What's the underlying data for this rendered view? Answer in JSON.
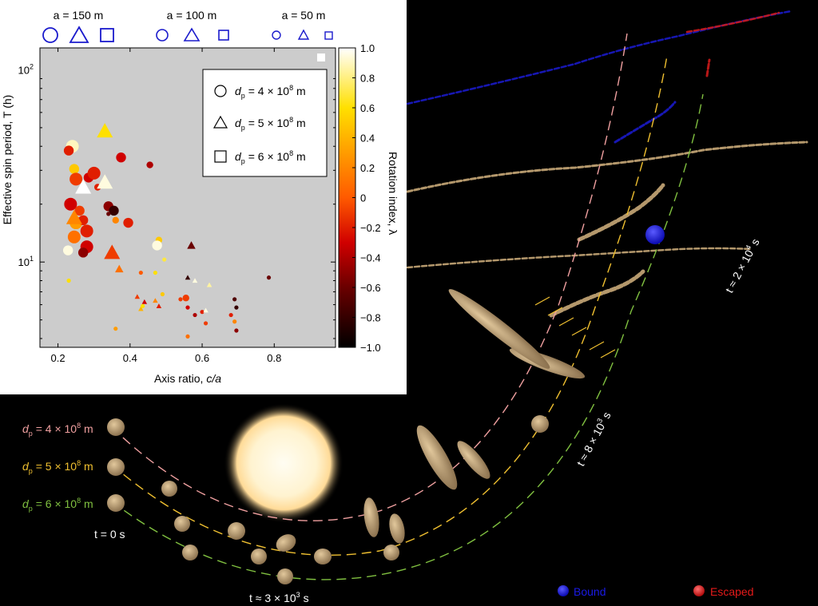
{
  "chart_data": {
    "type": "scatter",
    "xlabel_main": "Axis ratio, ",
    "xlabel_var": "c/a",
    "ylabel": "Effective spin period, T (h)",
    "ylog": true,
    "xlim": [
      0.15,
      0.97
    ],
    "ylim": [
      3.6,
      130
    ],
    "xticks": [
      "0.2",
      "0.4",
      "0.6",
      "0.8"
    ],
    "xtick_values": [
      0.2,
      0.4,
      0.6,
      0.8
    ],
    "ytick_labels": [
      {
        "value": 100,
        "base": "10",
        "exp": "2"
      },
      {
        "value": 10,
        "base": "10",
        "exp": "1"
      }
    ],
    "background": "#cccccc",
    "colorbar": {
      "label": "Rotation index, λ",
      "range": [
        -1,
        1
      ],
      "ticks": [
        "1.0",
        "0.8",
        "0.6",
        "0.4",
        "0.2",
        "0",
        "−0.2",
        "−0.4",
        "−0.6",
        "−0.8",
        "−1.0"
      ],
      "tick_values": [
        1.0,
        0.8,
        0.6,
        0.4,
        0.2,
        0,
        -0.2,
        -0.4,
        -0.6,
        -0.8,
        -1.0
      ]
    },
    "top_key": [
      {
        "label": "a = 150 m",
        "size": "large"
      },
      {
        "label": "a = 100 m",
        "size": "medium"
      },
      {
        "label": "a = 50 m",
        "size": "small"
      }
    ],
    "legend": [
      {
        "shape": "circle",
        "label": "dp = 4 × 10^8 m"
      },
      {
        "shape": "triangle",
        "label": "dp = 5 × 10^8 m"
      },
      {
        "shape": "square",
        "label": "dp = 6 × 10^8 m"
      }
    ],
    "points": [
      {
        "x": 0.24,
        "y": 40,
        "shape": "circle",
        "size": "L",
        "lambda": 0.9
      },
      {
        "x": 0.23,
        "y": 38,
        "shape": "circle",
        "size": "M",
        "lambda": -0.2
      },
      {
        "x": 0.245,
        "y": 30.5,
        "shape": "circle",
        "size": "M",
        "lambda": 0.5
      },
      {
        "x": 0.25,
        "y": 27,
        "shape": "circle",
        "size": "L",
        "lambda": -0.1
      },
      {
        "x": 0.285,
        "y": 27.5,
        "shape": "circle",
        "size": "M",
        "lambda": -0.3
      },
      {
        "x": 0.3,
        "y": 29,
        "shape": "circle",
        "size": "L",
        "lambda": -0.2
      },
      {
        "x": 0.235,
        "y": 20,
        "shape": "circle",
        "size": "L",
        "lambda": -0.3
      },
      {
        "x": 0.26,
        "y": 18.5,
        "shape": "circle",
        "size": "M",
        "lambda": -0.1
      },
      {
        "x": 0.25,
        "y": 16,
        "shape": "circle",
        "size": "L",
        "lambda": 0.3
      },
      {
        "x": 0.27,
        "y": 16.5,
        "shape": "circle",
        "size": "M",
        "lambda": -0.2
      },
      {
        "x": 0.28,
        "y": 14.5,
        "shape": "circle",
        "size": "L",
        "lambda": -0.2
      },
      {
        "x": 0.245,
        "y": 13.5,
        "shape": "circle",
        "size": "L",
        "lambda": 0.1
      },
      {
        "x": 0.28,
        "y": 12,
        "shape": "circle",
        "size": "L",
        "lambda": -0.3
      },
      {
        "x": 0.27,
        "y": 11.2,
        "shape": "circle",
        "size": "M",
        "lambda": -0.5
      },
      {
        "x": 0.228,
        "y": 11.5,
        "shape": "circle",
        "size": "M",
        "lambda": 0.95
      },
      {
        "x": 0.31,
        "y": 24.5,
        "shape": "circle",
        "size": "S",
        "lambda": -0.2
      },
      {
        "x": 0.34,
        "y": 19.5,
        "shape": "circle",
        "size": "M",
        "lambda": -0.5
      },
      {
        "x": 0.355,
        "y": 18.5,
        "shape": "circle",
        "size": "M",
        "lambda": -0.8
      },
      {
        "x": 0.36,
        "y": 16.5,
        "shape": "circle",
        "size": "S",
        "lambda": 0.2
      },
      {
        "x": 0.375,
        "y": 35,
        "shape": "circle",
        "size": "M",
        "lambda": -0.3
      },
      {
        "x": 0.395,
        "y": 16,
        "shape": "circle",
        "size": "M",
        "lambda": -0.2
      },
      {
        "x": 0.23,
        "y": 8,
        "shape": "circle",
        "size": "XS",
        "lambda": 0.6
      },
      {
        "x": 0.455,
        "y": 32,
        "shape": "circle",
        "size": "S",
        "lambda": -0.4
      },
      {
        "x": 0.48,
        "y": 13,
        "shape": "circle",
        "size": "S",
        "lambda": 0.5
      },
      {
        "x": 0.475,
        "y": 12.2,
        "shape": "circle",
        "size": "M",
        "lambda": 0.95
      },
      {
        "x": 0.555,
        "y": 6.5,
        "shape": "circle",
        "size": "S",
        "lambda": -0.1
      },
      {
        "x": 0.54,
        "y": 6.4,
        "shape": "circle",
        "size": "XS",
        "lambda": -0.1
      },
      {
        "x": 0.6,
        "y": 5.5,
        "shape": "circle",
        "size": "XS",
        "lambda": -0.2
      },
      {
        "x": 0.56,
        "y": 5.8,
        "shape": "circle",
        "size": "XS",
        "lambda": -0.3
      },
      {
        "x": 0.58,
        "y": 5.3,
        "shape": "circle",
        "size": "XS",
        "lambda": -0.4
      },
      {
        "x": 0.61,
        "y": 4.8,
        "shape": "circle",
        "size": "XS",
        "lambda": -0.1
      },
      {
        "x": 0.56,
        "y": 4.1,
        "shape": "circle",
        "size": "XS",
        "lambda": 0.1
      },
      {
        "x": 0.49,
        "y": 6.8,
        "shape": "circle",
        "size": "XS",
        "lambda": 0.5
      },
      {
        "x": 0.36,
        "y": 4.5,
        "shape": "circle",
        "size": "XS",
        "lambda": 0.3
      },
      {
        "x": 0.69,
        "y": 6.4,
        "shape": "circle",
        "size": "XS",
        "lambda": -0.7
      },
      {
        "x": 0.695,
        "y": 5.8,
        "shape": "circle",
        "size": "XS",
        "lambda": -0.8
      },
      {
        "x": 0.69,
        "y": 4.9,
        "shape": "circle",
        "size": "XS",
        "lambda": 0.2
      },
      {
        "x": 0.68,
        "y": 5.3,
        "shape": "circle",
        "size": "XS",
        "lambda": -0.2
      },
      {
        "x": 0.695,
        "y": 4.4,
        "shape": "circle",
        "size": "XS",
        "lambda": -0.5
      },
      {
        "x": 0.785,
        "y": 8.3,
        "shape": "circle",
        "size": "XS",
        "lambda": -0.6
      },
      {
        "x": 0.33,
        "y": 48,
        "shape": "triangle",
        "size": "L",
        "lambda": 0.6
      },
      {
        "x": 0.27,
        "y": 24.5,
        "shape": "triangle",
        "size": "L",
        "lambda": 1.0
      },
      {
        "x": 0.33,
        "y": 26,
        "shape": "triangle",
        "size": "L",
        "lambda": 0.95
      },
      {
        "x": 0.245,
        "y": 17,
        "shape": "triangle",
        "size": "L",
        "lambda": 0.2
      },
      {
        "x": 0.35,
        "y": 11.2,
        "shape": "triangle",
        "size": "L",
        "lambda": -0.1
      },
      {
        "x": 0.37,
        "y": 9.2,
        "shape": "triangle",
        "size": "S",
        "lambda": 0.1
      },
      {
        "x": 0.57,
        "y": 12.2,
        "shape": "triangle",
        "size": "S",
        "lambda": -0.6
      },
      {
        "x": 0.56,
        "y": 8.3,
        "shape": "triangle",
        "size": "XS",
        "lambda": -0.8
      },
      {
        "x": 0.58,
        "y": 8.0,
        "shape": "triangle",
        "size": "XS",
        "lambda": 0.95
      },
      {
        "x": 0.62,
        "y": 7.6,
        "shape": "triangle",
        "size": "XS",
        "lambda": 0.85
      },
      {
        "x": 0.42,
        "y": 6.6,
        "shape": "triangle",
        "size": "XS",
        "lambda": -0.1
      },
      {
        "x": 0.44,
        "y": 6.2,
        "shape": "triangle",
        "size": "XS",
        "lambda": -0.3
      },
      {
        "x": 0.47,
        "y": 6.3,
        "shape": "triangle",
        "size": "XS",
        "lambda": 0.2
      },
      {
        "x": 0.48,
        "y": 5.9,
        "shape": "triangle",
        "size": "XS",
        "lambda": -0.2
      },
      {
        "x": 0.61,
        "y": 5.6,
        "shape": "triangle",
        "size": "XS",
        "lambda": 0.95
      },
      {
        "x": 0.43,
        "y": 5.7,
        "shape": "triangle",
        "size": "XS",
        "lambda": 0.4
      },
      {
        "x": 0.435,
        "y": 5.9,
        "shape": "circle",
        "size": "XS",
        "lambda": 0.6
      },
      {
        "x": 0.495,
        "y": 10.3,
        "shape": "circle",
        "size": "XS",
        "lambda": 0.7
      },
      {
        "x": 0.43,
        "y": 8.8,
        "shape": "circle",
        "size": "XS",
        "lambda": 0.0
      },
      {
        "x": 0.34,
        "y": 17.8,
        "shape": "circle",
        "size": "XS",
        "lambda": -0.6
      },
      {
        "x": 0.47,
        "y": 8.8,
        "shape": "circle",
        "size": "XS",
        "lambda": 0.6
      }
    ],
    "main_legend": [
      {
        "label": "Bound",
        "color": "#1a1ae6"
      },
      {
        "label": "Escaped",
        "color": "#e61a1a"
      }
    ],
    "trajectories": [
      {
        "label_pre": "d",
        "label_sub": "p",
        "label_mid": " = 4 × 10",
        "label_sup": "8",
        "label_post": " m",
        "color": "#f0a0a0"
      },
      {
        "label_pre": "d",
        "label_sub": "p",
        "label_mid": " = 5 × 10",
        "label_sup": "8",
        "label_post": " m",
        "color": "#f0c030"
      },
      {
        "label_pre": "d",
        "label_sub": "p",
        "label_mid": " = 6 × 10",
        "label_sup": "8",
        "label_post": " m",
        "color": "#80c040"
      }
    ],
    "time_labels": [
      {
        "pre": "t = 0 s",
        "base": "",
        "sup": "",
        "post": ""
      },
      {
        "pre": "t ≈ 3 × 10",
        "base": "",
        "sup": "3",
        "post": " s"
      },
      {
        "pre": "t ≈ 8 × 10",
        "base": "",
        "sup": "3",
        "post": " s"
      },
      {
        "pre": "t ≈ 2 × 10",
        "base": "",
        "sup": "4",
        "post": " s"
      }
    ],
    "colors": {
      "blue_marker": "#1a1acc",
      "body": "#c8a878",
      "sun_core": "#fff8e0",
      "sun_glow": "#ffd890"
    }
  }
}
